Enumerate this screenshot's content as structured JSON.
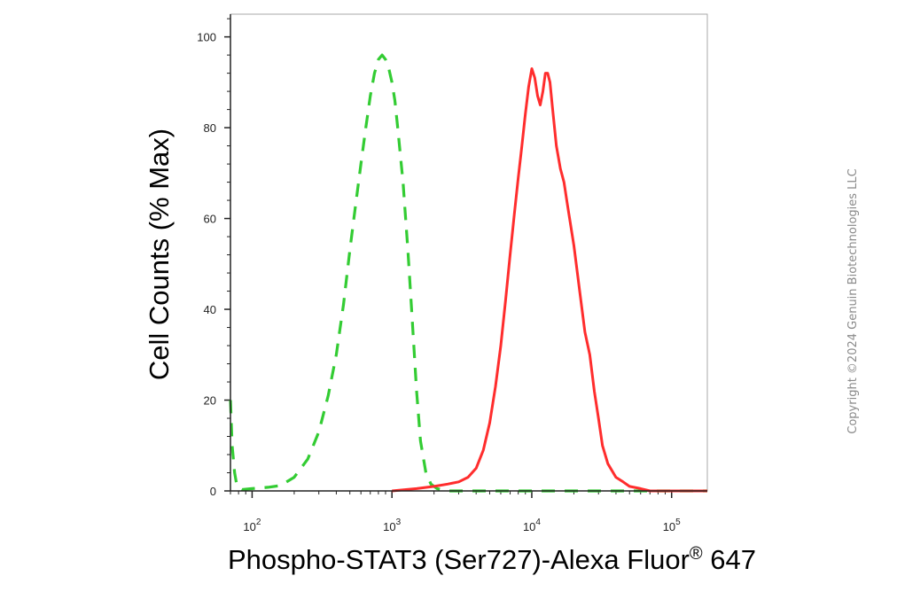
{
  "chart_data": {
    "type": "line",
    "xscale": "log",
    "xlim": [
      70,
      180000
    ],
    "ylim": [
      0,
      105
    ],
    "xlabel": "Phospho-STAT3 (Ser727)-Alexa Fluor",
    "xlabel_superscript": "®",
    "xlabel_suffix": " 647",
    "ylabel": "Cell Counts (% Max)",
    "y_ticks": [
      0,
      20,
      40,
      60,
      80,
      100
    ],
    "x_ticks": [
      {
        "value": 100,
        "base": "10",
        "exp": "2"
      },
      {
        "value": 1000,
        "base": "10",
        "exp": "3"
      },
      {
        "value": 10000,
        "base": "10",
        "exp": "4"
      },
      {
        "value": 100000,
        "base": "10",
        "exp": "5"
      }
    ],
    "grid": false,
    "series": [
      {
        "color": "#33cc33",
        "style": "dashed",
        "x": [
          70,
          72,
          75,
          78,
          85,
          100,
          130,
          160,
          200,
          250,
          300,
          350,
          400,
          450,
          500,
          550,
          600,
          650,
          700,
          750,
          800,
          850,
          900,
          950,
          1000,
          1050,
          1100,
          1200,
          1300,
          1400,
          1500,
          1600,
          1750,
          1900,
          2100,
          2500,
          3000,
          5000,
          10000,
          50000,
          180000
        ],
        "y": [
          20,
          10,
          4,
          1,
          0.3,
          0.5,
          0.8,
          1.2,
          3,
          7,
          13,
          21,
          30,
          41,
          53,
          63,
          72,
          80,
          87,
          92,
          95,
          96,
          95,
          93,
          90,
          86,
          80,
          68,
          53,
          37,
          22,
          11,
          4,
          1.5,
          0.5,
          0,
          0,
          0,
          0,
          0,
          0
        ]
      },
      {
        "color": "#ff2d2d",
        "style": "solid",
        "x": [
          1000,
          1500,
          2000,
          2500,
          3000,
          3500,
          4000,
          4500,
          5000,
          5500,
          6000,
          6500,
          7000,
          7500,
          8000,
          8500,
          9000,
          9500,
          10000,
          10500,
          11000,
          11500,
          12000,
          12500,
          13000,
          13500,
          14000,
          15000,
          16000,
          17000,
          18000,
          20000,
          22000,
          24000,
          26000,
          28000,
          30000,
          32000,
          35000,
          40000,
          45000,
          50000,
          60000,
          70000,
          180000
        ],
        "y": [
          0,
          0.5,
          1,
          1.5,
          2,
          3,
          5,
          9,
          15,
          23,
          32,
          42,
          52,
          61,
          69,
          76,
          83,
          89,
          93,
          91,
          87,
          85,
          88,
          92,
          92,
          90,
          85,
          76,
          71,
          68,
          63,
          54,
          44,
          35,
          30,
          22,
          16,
          10,
          6,
          3,
          2,
          1,
          0.5,
          0,
          0
        ]
      }
    ]
  },
  "watermark": {
    "text": "Copyright ©2024 Genuin Biotechnologies LLC"
  }
}
